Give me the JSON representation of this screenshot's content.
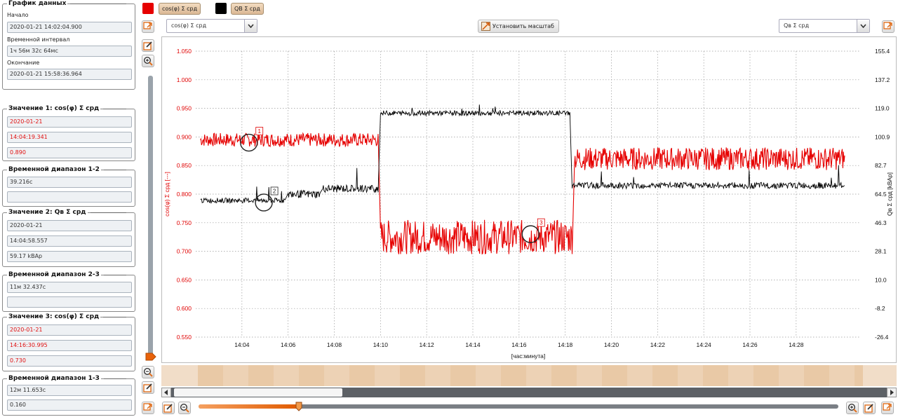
{
  "colors": {
    "series1": "#e60000",
    "series2": "#000000",
    "accent": "#f07a20"
  },
  "left_panel": {
    "data_group": {
      "title": "График данных",
      "start_label": "Начало",
      "start_value": "2020-01-21 14:02:04.900",
      "interval_label": "Временной интервал",
      "interval_value": "1ч 56м 32с 64мс",
      "end_label": "Окончание",
      "end_value": "2020-01-21 15:58:36.964"
    },
    "value1": {
      "title": "Значение 1: cos(φ) Σ срд",
      "date": "2020-01-21",
      "time": "14:04:19.341",
      "value": "0.890"
    },
    "range12": {
      "title": "Временной диапазон 1-2",
      "value": "39.216с",
      "extra": ""
    },
    "value2": {
      "title": "Значение 2: Qв Σ срд",
      "date": "2020-01-21",
      "time": "14:04:58.557",
      "value": "59.17 kВАр"
    },
    "range23": {
      "title": "Временной диапазон 2-3",
      "value": "11м 32.437с",
      "extra": ""
    },
    "value3": {
      "title": "Значение 3: cos(φ) Σ срд",
      "date": "2020-01-21",
      "time": "14:16:30.995",
      "value": "0.730"
    },
    "range13": {
      "title": "Временной диапазон 1-3",
      "value": "12м 11.653с",
      "extra": "0.160"
    }
  },
  "toolbar": {
    "legend1_label": "cos(φ) Σ срд",
    "legend2_label": "QВ Σ срд",
    "left_combo": "cos(φ) Σ срд",
    "right_combo": "Qв Σ срд",
    "scale_button": "Установить масштаб"
  },
  "chart_data": {
    "type": "line",
    "xlabel": "[час:минута]",
    "ylabel_left": "cos(φ) Σ срд [---]",
    "ylabel_right": "Qв Σ срд [kВАр]",
    "x_ticks": [
      "14:04",
      "14:06",
      "14:08",
      "14:10",
      "14:12",
      "14:14",
      "14:16",
      "14:18",
      "14:20",
      "14:22",
      "14:24",
      "14:26",
      "14:28"
    ],
    "x_range_minutes": [
      2.0,
      30.8
    ],
    "y_left_ticks": [
      "1.050",
      "1.000",
      "0.950",
      "0.900",
      "0.850",
      "0.800",
      "0.750",
      "0.700",
      "0.650",
      "0.600",
      "0.550"
    ],
    "y_left_range": [
      0.55,
      1.05
    ],
    "y_right_ticks": [
      "155.4",
      "137.2",
      "119.0",
      "100.9",
      "82.7",
      "64.5",
      "46.3",
      "28.1",
      "10.0",
      "-8.2",
      "-26.4"
    ],
    "y_right_range": [
      -26.4,
      155.4
    ],
    "grid": true,
    "series": [
      {
        "name": "cos(φ) Σ срд",
        "axis": "left",
        "segments": [
          {
            "x_start": 2.2,
            "x_end": 9.9,
            "level": 0.895,
            "noise": 0.012
          },
          {
            "x_start": 10.0,
            "x_end": 18.3,
            "level": 0.725,
            "noise": 0.03
          },
          {
            "x_start": 18.4,
            "x_end": 30.1,
            "level": 0.862,
            "noise": 0.02
          }
        ]
      },
      {
        "name": "Qв Σ срд",
        "axis": "right",
        "segments": [
          {
            "x_start": 2.2,
            "x_end": 5.9,
            "level": 60.5,
            "noise": 1.6
          },
          {
            "x_start": 6.0,
            "x_end": 7.4,
            "level": 64.5,
            "noise": 2.5
          },
          {
            "x_start": 7.5,
            "x_end": 9.9,
            "level": 68.0,
            "noise": 2.5
          },
          {
            "x_start": 10.0,
            "x_end": 18.2,
            "level": 116.0,
            "noise": 1.6
          },
          {
            "x_start": 18.3,
            "x_end": 30.1,
            "level": 70.0,
            "noise": 2.0
          }
        ]
      }
    ],
    "markers": [
      {
        "label": "1",
        "x": 4.3,
        "y": 0.89,
        "axis": "left"
      },
      {
        "label": "2",
        "x": 4.95,
        "y": 59.17,
        "axis": "right"
      },
      {
        "label": "3",
        "x": 16.5,
        "y": 0.73,
        "axis": "left"
      }
    ]
  }
}
